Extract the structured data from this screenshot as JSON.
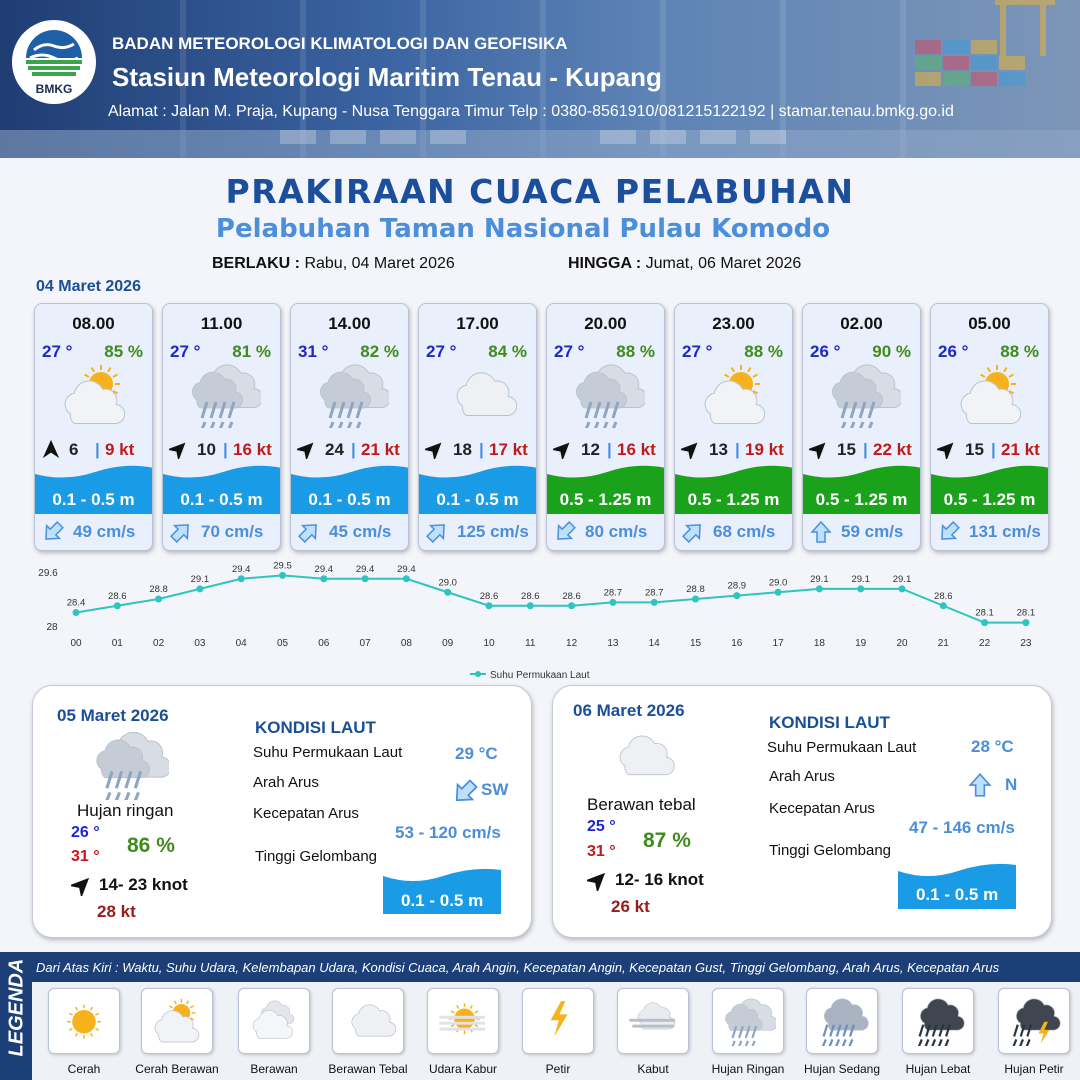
{
  "header": {
    "logo_text": "BMKG",
    "agency": "BADAN METEOROLOGI KLIMATOLOGI DAN GEOFISIKA",
    "station": "Stasiun Meteorologi Maritim Tenau - Kupang",
    "address": "Alamat : Jalan M. Praja, Kupang - Nusa Tenggara Timur Telp : 0380-8561910/081215122192  | stamar.tenau.bmkg.go.id"
  },
  "title": "PRAKIRAAN CUACA PELABUHAN",
  "subtitle": "Pelabuhan Taman Nasional Pulau Komodo",
  "validity": {
    "from_label": "BERLAKU :",
    "from_value": "Rabu, 04 Maret 2026",
    "to_label": "HINGGA :",
    "to_value": "Jumat, 06 Maret 2026"
  },
  "day1": {
    "date": "04 Maret 2026",
    "cards": [
      {
        "time": "08.00",
        "temp": "27 °",
        "hum": "85 %",
        "icon": "cerah-berawan",
        "wind_dir": "N",
        "wind_speed": "6",
        "gust": "9 kt",
        "sep": "|",
        "wave": "0.1 - 0.5 m",
        "wave_color": "#1a9be6",
        "cur_dir": "SW",
        "cur_speed": "49 cm/s"
      },
      {
        "time": "11.00",
        "temp": "27 °",
        "hum": "81 %",
        "icon": "hujan-ringan",
        "wind_dir": "NE",
        "wind_speed": "10",
        "gust": "16 kt",
        "sep": "|",
        "wave": "0.1 - 0.5 m",
        "wave_color": "#1a9be6",
        "cur_dir": "NE",
        "cur_speed": "70 cm/s"
      },
      {
        "time": "14.00",
        "temp": "31 °",
        "hum": "82 %",
        "icon": "hujan-ringan",
        "wind_dir": "NE",
        "wind_speed": "24",
        "gust": "21 kt",
        "sep": "|",
        "wave": "0.1 - 0.5 m",
        "wave_color": "#1a9be6",
        "cur_dir": "NE",
        "cur_speed": "45 cm/s"
      },
      {
        "time": "17.00",
        "temp": "27 °",
        "hum": "84 %",
        "icon": "berawan-tebal",
        "wind_dir": "NE",
        "wind_speed": "18",
        "gust": "17 kt",
        "sep": "|",
        "wave": "0.1 - 0.5 m",
        "wave_color": "#1a9be6",
        "cur_dir": "NE",
        "cur_speed": "125 cm/s"
      },
      {
        "time": "20.00",
        "temp": "27 °",
        "hum": "88 %",
        "icon": "hujan-ringan",
        "wind_dir": "NE",
        "wind_speed": "12",
        "gust": "16 kt",
        "sep": "|",
        "wave": "0.5 - 1.25 m",
        "wave_color": "#1aa31a",
        "cur_dir": "SW",
        "cur_speed": "80 cm/s"
      },
      {
        "time": "23.00",
        "temp": "27 °",
        "hum": "88 %",
        "icon": "cerah-berawan",
        "wind_dir": "NE",
        "wind_speed": "13",
        "gust": "19 kt",
        "sep": "|",
        "wave": "0.5 - 1.25 m",
        "wave_color": "#1aa31a",
        "cur_dir": "NE",
        "cur_speed": "68 cm/s"
      },
      {
        "time": "02.00",
        "temp": "26 °",
        "hum": "90 %",
        "icon": "hujan-ringan",
        "wind_dir": "NE",
        "wind_speed": "15",
        "gust": "22 kt",
        "sep": "|",
        "wave": "0.5 - 1.25 m",
        "wave_color": "#1aa31a",
        "cur_dir": "N",
        "cur_speed": "59 cm/s"
      },
      {
        "time": "05.00",
        "temp": "26 °",
        "hum": "88 %",
        "icon": "cerah-berawan",
        "wind_dir": "NE",
        "wind_speed": "15",
        "gust": "21 kt",
        "sep": "|",
        "wave": "0.5 - 1.25 m",
        "wave_color": "#1aa31a",
        "cur_dir": "SW",
        "cur_speed": "131 cm/s"
      }
    ]
  },
  "chart_data": {
    "type": "line",
    "title": "",
    "x": [
      "00",
      "01",
      "02",
      "03",
      "04",
      "05",
      "06",
      "07",
      "08",
      "09",
      "10",
      "11",
      "12",
      "13",
      "14",
      "15",
      "16",
      "17",
      "18",
      "19",
      "20",
      "21",
      "22",
      "23"
    ],
    "series": [
      {
        "name": "Suhu Permukaan Laut",
        "values": [
          28.4,
          28.6,
          28.8,
          29.1,
          29.4,
          29.5,
          29.4,
          29.4,
          29.4,
          29.0,
          28.6,
          28.6,
          28.6,
          28.7,
          28.7,
          28.8,
          28.9,
          29.0,
          29.1,
          29.1,
          29.1,
          28.6,
          28.1,
          28.1
        ],
        "color": "#2ec4c0"
      }
    ],
    "y_ticks": [
      "29.6",
      "28"
    ],
    "ylim": [
      28,
      29.6
    ],
    "grid": false,
    "legend": "bottom-center"
  },
  "day2": {
    "date": "05 Maret 2026",
    "icon": "hujan-ringan",
    "condition": "Hujan ringan",
    "tmin": "26 °",
    "tmax": "31 °",
    "hum": "86 %",
    "wind_dir": "NE",
    "wind": "14- 23 knot",
    "gust": "28 kt",
    "sea_title": "KONDISI LAUT",
    "sst_label": "Suhu Permukaan Laut",
    "sst_value": "29 °C",
    "cur_dir_label": "Arah Arus",
    "cur_dir_icon": "SW",
    "cur_dir_value": "SW",
    "cur_speed_label": "Kecepatan Arus",
    "cur_speed_value": "53 - 120 cm/s",
    "wave_label": "Tinggi Gelombang",
    "wave_value": "0.1 - 0.5 m"
  },
  "day3": {
    "date": "06 Maret 2026",
    "icon": "berawan-tebal",
    "condition": "Berawan tebal",
    "tmin": "25 °",
    "tmax": "31 °",
    "hum": "87 %",
    "wind_dir": "NE",
    "wind": "12- 16 knot",
    "gust": "26 kt",
    "sea_title": "KONDISI LAUT",
    "sst_label": "Suhu Permukaan Laut",
    "sst_value": "28 °C",
    "cur_dir_label": "Arah Arus",
    "cur_dir_icon": "N",
    "cur_dir_value": "N",
    "cur_speed_label": "Kecepatan Arus",
    "cur_speed_value": "47 - 146 cm/s",
    "wave_label": "Tinggi Gelombang",
    "wave_value": "0.1 - 0.5 m"
  },
  "legend": {
    "title": "LEGENDA",
    "description": "Dari Atas Kiri : Waktu, Suhu Udara, Kelembapan Udara, Kondisi Cuaca, Arah Angin, Kecepatan Angin, Kecepatan Gust, Tinggi Gelombang, Arah Arus, Kecepatan Arus",
    "items": [
      {
        "label": "Cerah",
        "icon": "cerah"
      },
      {
        "label": "Cerah Berawan",
        "icon": "cerah-berawan"
      },
      {
        "label": "Berawan",
        "icon": "berawan"
      },
      {
        "label": "Berawan Tebal",
        "icon": "berawan-tebal"
      },
      {
        "label": "Udara Kabur",
        "icon": "udara-kabur"
      },
      {
        "label": "Petir",
        "icon": "petir"
      },
      {
        "label": "Kabut",
        "icon": "kabut"
      },
      {
        "label": "Hujan Ringan",
        "icon": "hujan-ringan"
      },
      {
        "label": "Hujan Sedang",
        "icon": "hujan-sedang"
      },
      {
        "label": "Hujan Lebat",
        "icon": "hujan-lebat"
      },
      {
        "label": "Hujan Petir",
        "icon": "hujan-petir"
      }
    ]
  }
}
